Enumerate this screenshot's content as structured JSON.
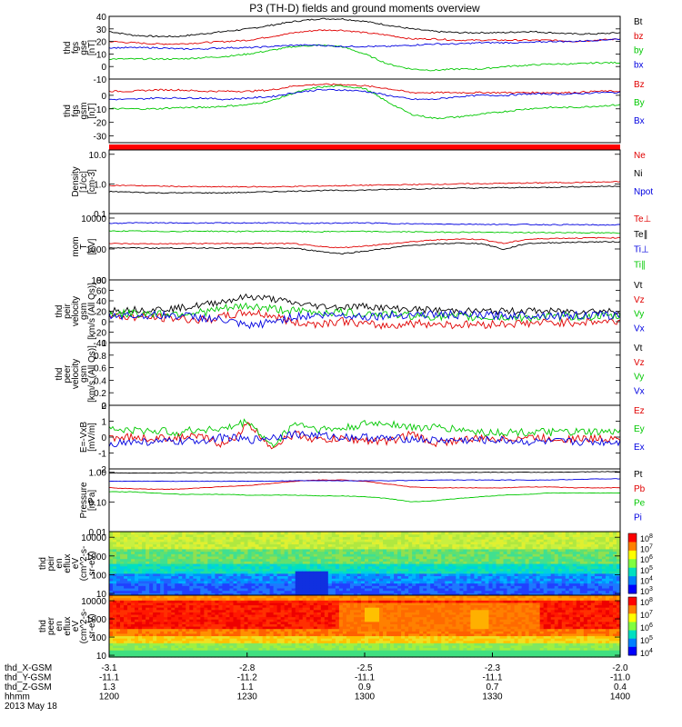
{
  "title": "P3 (TH-D) fields and ground moments overview",
  "chart_data": [
    {
      "type": "line",
      "panel": "fgs-gse",
      "ylabel": [
        "thd",
        "fgs",
        "gse",
        "[nT]"
      ],
      "ylim": [
        -10,
        40
      ],
      "yticks": [
        -10,
        0,
        10,
        20,
        30,
        40
      ],
      "series": [
        {
          "name": "Bt",
          "color": "#000000",
          "base": [
            28,
            25,
            24,
            24,
            26,
            28,
            30,
            33,
            36,
            38,
            38,
            36,
            33,
            30,
            28,
            27,
            27,
            27,
            28,
            27,
            26,
            26,
            27
          ]
        },
        {
          "name": "bz",
          "color": "#e00000",
          "base": [
            20,
            19,
            18,
            18,
            19,
            20,
            21,
            24,
            27,
            29,
            29,
            27,
            25,
            22,
            22,
            21,
            21,
            21,
            21,
            21,
            20,
            21,
            22
          ]
        },
        {
          "name": "by",
          "color": "#00c800",
          "base": [
            6,
            6,
            6,
            6,
            7,
            8,
            10,
            13,
            16,
            17,
            16,
            10,
            2,
            -2,
            -3,
            -2,
            -2,
            0,
            1,
            2,
            2,
            3,
            3
          ]
        },
        {
          "name": "bx",
          "color": "#0000e0",
          "base": [
            15,
            15,
            15,
            14,
            14,
            15,
            15,
            16,
            17,
            17,
            16,
            16,
            16,
            17,
            18,
            18,
            19,
            19,
            19,
            20,
            20,
            21,
            22
          ]
        }
      ]
    },
    {
      "type": "line",
      "panel": "fgs-gsm",
      "ylabel": [
        "thd",
        "fgs",
        "gsm",
        "[nT]"
      ],
      "ylim": [
        -35,
        12
      ],
      "yticks": [
        -30,
        -20,
        -10,
        0
      ],
      "series": [
        {
          "name": "Bz",
          "color": "#e00000",
          "base": [
            3,
            3,
            4,
            4,
            3,
            3,
            3,
            4,
            7,
            8,
            8,
            7,
            5,
            2,
            2,
            2,
            2,
            2,
            2,
            2,
            2,
            3,
            3
          ]
        },
        {
          "name": "By",
          "color": "#00c800",
          "base": [
            -10,
            -10,
            -10,
            -9,
            -9,
            -8,
            -7,
            -4,
            2,
            6,
            7,
            5,
            -5,
            -14,
            -17,
            -16,
            -14,
            -12,
            -10,
            -9,
            -9,
            -8,
            -7
          ]
        },
        {
          "name": "Bx",
          "color": "#0000e0",
          "base": [
            -3,
            -3,
            -2,
            -2,
            -2,
            -3,
            -2,
            -1,
            2,
            4,
            4,
            3,
            0,
            -3,
            -3,
            -1,
            0,
            0,
            1,
            1,
            1,
            2,
            2
          ]
        }
      ]
    },
    {
      "type": "line",
      "panel": "density",
      "ylabel": [
        "Density",
        "[1/cc]",
        "[cm-3]"
      ],
      "log": true,
      "ylim": [
        0.1,
        14
      ],
      "ytick_labels": [
        "0.1",
        "1.0",
        "10.0"
      ],
      "series": [
        {
          "name": "Ne",
          "color": "#e00000",
          "base": [
            0.9,
            0.88,
            0.85,
            0.82,
            0.8,
            0.8,
            0.8,
            0.8,
            0.82,
            0.85,
            0.87,
            0.9,
            0.92,
            0.95,
            0.97,
            1.0,
            1.02,
            1.05,
            1.07,
            1.1,
            1.12,
            1.15,
            1.18
          ]
        },
        {
          "name": "Ni",
          "color": "#000000",
          "base": [
            0.55,
            0.53,
            0.5,
            0.5,
            0.5,
            0.5,
            0.52,
            0.55,
            0.57,
            0.6,
            0.6,
            0.62,
            0.65,
            0.67,
            0.7,
            0.72,
            0.72,
            0.75,
            0.75,
            0.77,
            0.8,
            0.82,
            0.85
          ]
        },
        {
          "name": "Npot",
          "color": "#0000e0",
          "base": []
        }
      ]
    },
    {
      "type": "line",
      "panel": "temperature",
      "ylabel": [
        "mom",
        "T",
        "[eV]"
      ],
      "log": true,
      "ylim": [
        100,
        14000
      ],
      "ytick_labels": [
        "100",
        "1000",
        "10000"
      ],
      "series": [
        {
          "name": "Te⊥",
          "color": "#e00000",
          "base": [
            1500,
            1480,
            1470,
            1480,
            1500,
            1500,
            1500,
            1500,
            1480,
            1200,
            1100,
            1250,
            1450,
            1700,
            1950,
            2100,
            2050,
            1500,
            2050,
            2200,
            2250,
            2300,
            2300
          ]
        },
        {
          "name": "Te∥",
          "color": "#000000",
          "base": [
            1100,
            1080,
            1070,
            1070,
            1080,
            1080,
            1080,
            1080,
            1050,
            850,
            700,
            850,
            1050,
            1300,
            1450,
            1550,
            1500,
            950,
            1500,
            1600,
            1650,
            1700,
            1700
          ]
        },
        {
          "name": "Ti⊥",
          "color": "#0000e0",
          "base": [
            6800,
            7000,
            7000,
            6900,
            7000,
            6900,
            7000,
            7000,
            6800,
            6800,
            6900,
            7000,
            6700,
            6500,
            6400,
            6400,
            6300,
            6200,
            6200,
            6100,
            6100,
            6000,
            6000
          ]
        },
        {
          "name": "Ti∥",
          "color": "#00c800",
          "base": [
            3800,
            3800,
            3700,
            3700,
            3800,
            3700,
            3700,
            3800,
            3700,
            3600,
            3700,
            3700,
            3600,
            3600,
            3500,
            3500,
            3500,
            3400,
            3400,
            3400,
            3400,
            3300,
            3300
          ]
        }
      ]
    },
    {
      "type": "line",
      "panel": "peir-velocity",
      "ylabel": [
        "thd",
        "peir",
        "velocity",
        "gsm",
        "[km/s (All Qs)]"
      ],
      "ylim": [
        -40,
        80
      ],
      "yticks": [
        -40,
        -20,
        0,
        20,
        40,
        60,
        80
      ],
      "series": [
        {
          "name": "Vt",
          "color": "#000000",
          "base": [
            22,
            23,
            24,
            26,
            32,
            40,
            48,
            44,
            35,
            30,
            28,
            30,
            26,
            24,
            22,
            21,
            20,
            20,
            21,
            20,
            20,
            21,
            20
          ]
        },
        {
          "name": "Vz",
          "color": "#e00000",
          "base": [
            10,
            9,
            8,
            6,
            3,
            10,
            18,
            12,
            -2,
            -4,
            2,
            -5,
            -8,
            -3,
            -4,
            -6,
            -5,
            -4,
            -3,
            -2,
            -1,
            0,
            1
          ]
        },
        {
          "name": "Vy",
          "color": "#00c800",
          "base": [
            15,
            15,
            16,
            16,
            18,
            25,
            30,
            25,
            20,
            18,
            18,
            16,
            14,
            12,
            10,
            9,
            8,
            8,
            8,
            9,
            10,
            10,
            10
          ]
        },
        {
          "name": "Vx",
          "color": "#0000e0",
          "base": [
            12,
            12,
            12,
            12,
            8,
            2,
            -10,
            0,
            10,
            12,
            13,
            10,
            12,
            14,
            14,
            13,
            12,
            12,
            13,
            12,
            12,
            12,
            12
          ]
        }
      ]
    },
    {
      "type": "line",
      "panel": "peer-velocity",
      "ylabel": [
        "thd",
        "peer",
        "velocity",
        "gsm",
        "[km/s (All Qs)]"
      ],
      "ylim": [
        0,
        1
      ],
      "yticks": [
        0.0,
        0.2,
        0.4,
        0.6,
        0.8,
        1.0
      ],
      "series": [
        {
          "name": "Vt",
          "color": "#000000",
          "base": []
        },
        {
          "name": "Vz",
          "color": "#e00000",
          "base": []
        },
        {
          "name": "Vy",
          "color": "#00c800",
          "base": []
        },
        {
          "name": "Vx",
          "color": "#0000e0",
          "base": []
        }
      ]
    },
    {
      "type": "line",
      "panel": "efield",
      "ylabel": [
        "E=-VxB",
        "[mV/m]"
      ],
      "ylim": [
        -2,
        2
      ],
      "yticks": [
        -2,
        -1,
        0,
        1,
        2
      ],
      "series": [
        {
          "name": "Ez",
          "color": "#e00000",
          "base": [
            0.0,
            0.0,
            -0.1,
            0.0,
            0.0,
            -0.5,
            0.8,
            -0.6,
            0.2,
            -0.2,
            -0.1,
            -0.2,
            -0.3,
            0.2,
            -0.4,
            -0.2,
            -0.1,
            -0.1,
            0.0,
            -0.1,
            -0.1,
            -0.1,
            0.0
          ]
        },
        {
          "name": "Ey",
          "color": "#00c800",
          "base": [
            0.5,
            0.4,
            0.4,
            0.3,
            0.5,
            0.5,
            1.0,
            -0.6,
            0.9,
            0.5,
            0.5,
            0.8,
            0.9,
            0.6,
            0.6,
            0.5,
            0.3,
            0.3,
            0.3,
            0.3,
            0.3,
            0.3,
            0.3
          ]
        },
        {
          "name": "Ex",
          "color": "#0000e0",
          "base": [
            -0.4,
            -0.3,
            -0.3,
            -0.3,
            -0.2,
            0.0,
            -0.2,
            0.0,
            0.2,
            0.1,
            0.0,
            0.0,
            -0.1,
            -0.1,
            -0.2,
            -0.2,
            -0.2,
            -0.2,
            -0.3,
            -0.3,
            -0.3,
            -0.3,
            -0.3
          ]
        }
      ]
    },
    {
      "type": "line",
      "panel": "pressure",
      "ylabel": [
        "Pressure",
        "[nPa]"
      ],
      "log": true,
      "ylim": [
        0.01,
        1.3
      ],
      "ytick_labels": [
        "0.01",
        "0.10",
        "1.00"
      ],
      "series": [
        {
          "name": "Pt",
          "color": "#000000",
          "base": [
            0.95,
            0.95,
            0.95,
            0.97,
            0.97,
            0.97,
            0.98,
            0.98,
            1.0,
            1.0,
            1.0,
            1.0,
            1.0,
            1.0,
            1.0,
            1.0,
            1.0,
            1.0,
            1.0,
            1.0,
            1.02,
            1.05,
            1.05
          ]
        },
        {
          "name": "Pb",
          "color": "#e00000",
          "base": [
            0.3,
            0.28,
            0.27,
            0.27,
            0.3,
            0.33,
            0.36,
            0.42,
            0.5,
            0.55,
            0.55,
            0.5,
            0.4,
            0.32,
            0.3,
            0.3,
            0.3,
            0.3,
            0.32,
            0.32,
            0.3,
            0.3,
            0.3
          ]
        },
        {
          "name": "Pe",
          "color": "#00c800",
          "base": [
            0.22,
            0.22,
            0.2,
            0.18,
            0.18,
            0.18,
            0.17,
            0.17,
            0.17,
            0.16,
            0.16,
            0.15,
            0.13,
            0.1,
            0.11,
            0.13,
            0.15,
            0.17,
            0.18,
            0.2,
            0.2,
            0.2,
            0.2
          ]
        },
        {
          "name": "Pi",
          "color": "#0000e0",
          "base": [
            0.5,
            0.5,
            0.5,
            0.5,
            0.5,
            0.5,
            0.5,
            0.5,
            0.52,
            0.52,
            0.52,
            0.52,
            0.52,
            0.53,
            0.55,
            0.55,
            0.55,
            0.55,
            0.55,
            0.55,
            0.57,
            0.6,
            0.6
          ]
        }
      ]
    },
    {
      "type": "heatmap",
      "panel": "peir-efluxes",
      "ylabel": [
        "thd",
        "peir",
        "en",
        "eflux",
        "eV",
        "(cm^2-s-",
        "sr-eV)"
      ],
      "log": true,
      "ylim": [
        8,
        20000
      ],
      "ytick_labels": [
        "10",
        "100",
        "1000",
        "10000"
      ],
      "colorbar": {
        "exponents": [
          "8",
          "7",
          "6",
          "5",
          "4",
          "3"
        ],
        "base": "10"
      }
    },
    {
      "type": "heatmap",
      "panel": "peer-efluxes",
      "ylabel": [
        "thd",
        "peer",
        "en",
        "eflux",
        "eV",
        "(cm^2-s-",
        "sr-eV)"
      ],
      "log": true,
      "ylim": [
        8,
        20000
      ],
      "ytick_labels": [
        "10",
        "100",
        "1000",
        "10000"
      ],
      "colorbar": {
        "exponents": [
          "8",
          "7",
          "6",
          "5",
          "4"
        ],
        "base": "10"
      }
    }
  ],
  "x_axis": {
    "rows": [
      {
        "label": "thd_X-GSM",
        "values": [
          "-3.1",
          "-2.8",
          "-2.5",
          "-2.3",
          "-2.0"
        ]
      },
      {
        "label": "thd_Y-GSM",
        "values": [
          "-11.1",
          "-11.2",
          "-11.1",
          "-11.1",
          "-11.0"
        ]
      },
      {
        "label": "thd_Z-GSM",
        "values": [
          "1.3",
          "1.1",
          "0.9",
          "0.7",
          "0.4"
        ]
      },
      {
        "label": "hhmm",
        "values": [
          "1200",
          "1230",
          "1300",
          "1330",
          "1400"
        ]
      }
    ],
    "date": "2013 May 18"
  }
}
